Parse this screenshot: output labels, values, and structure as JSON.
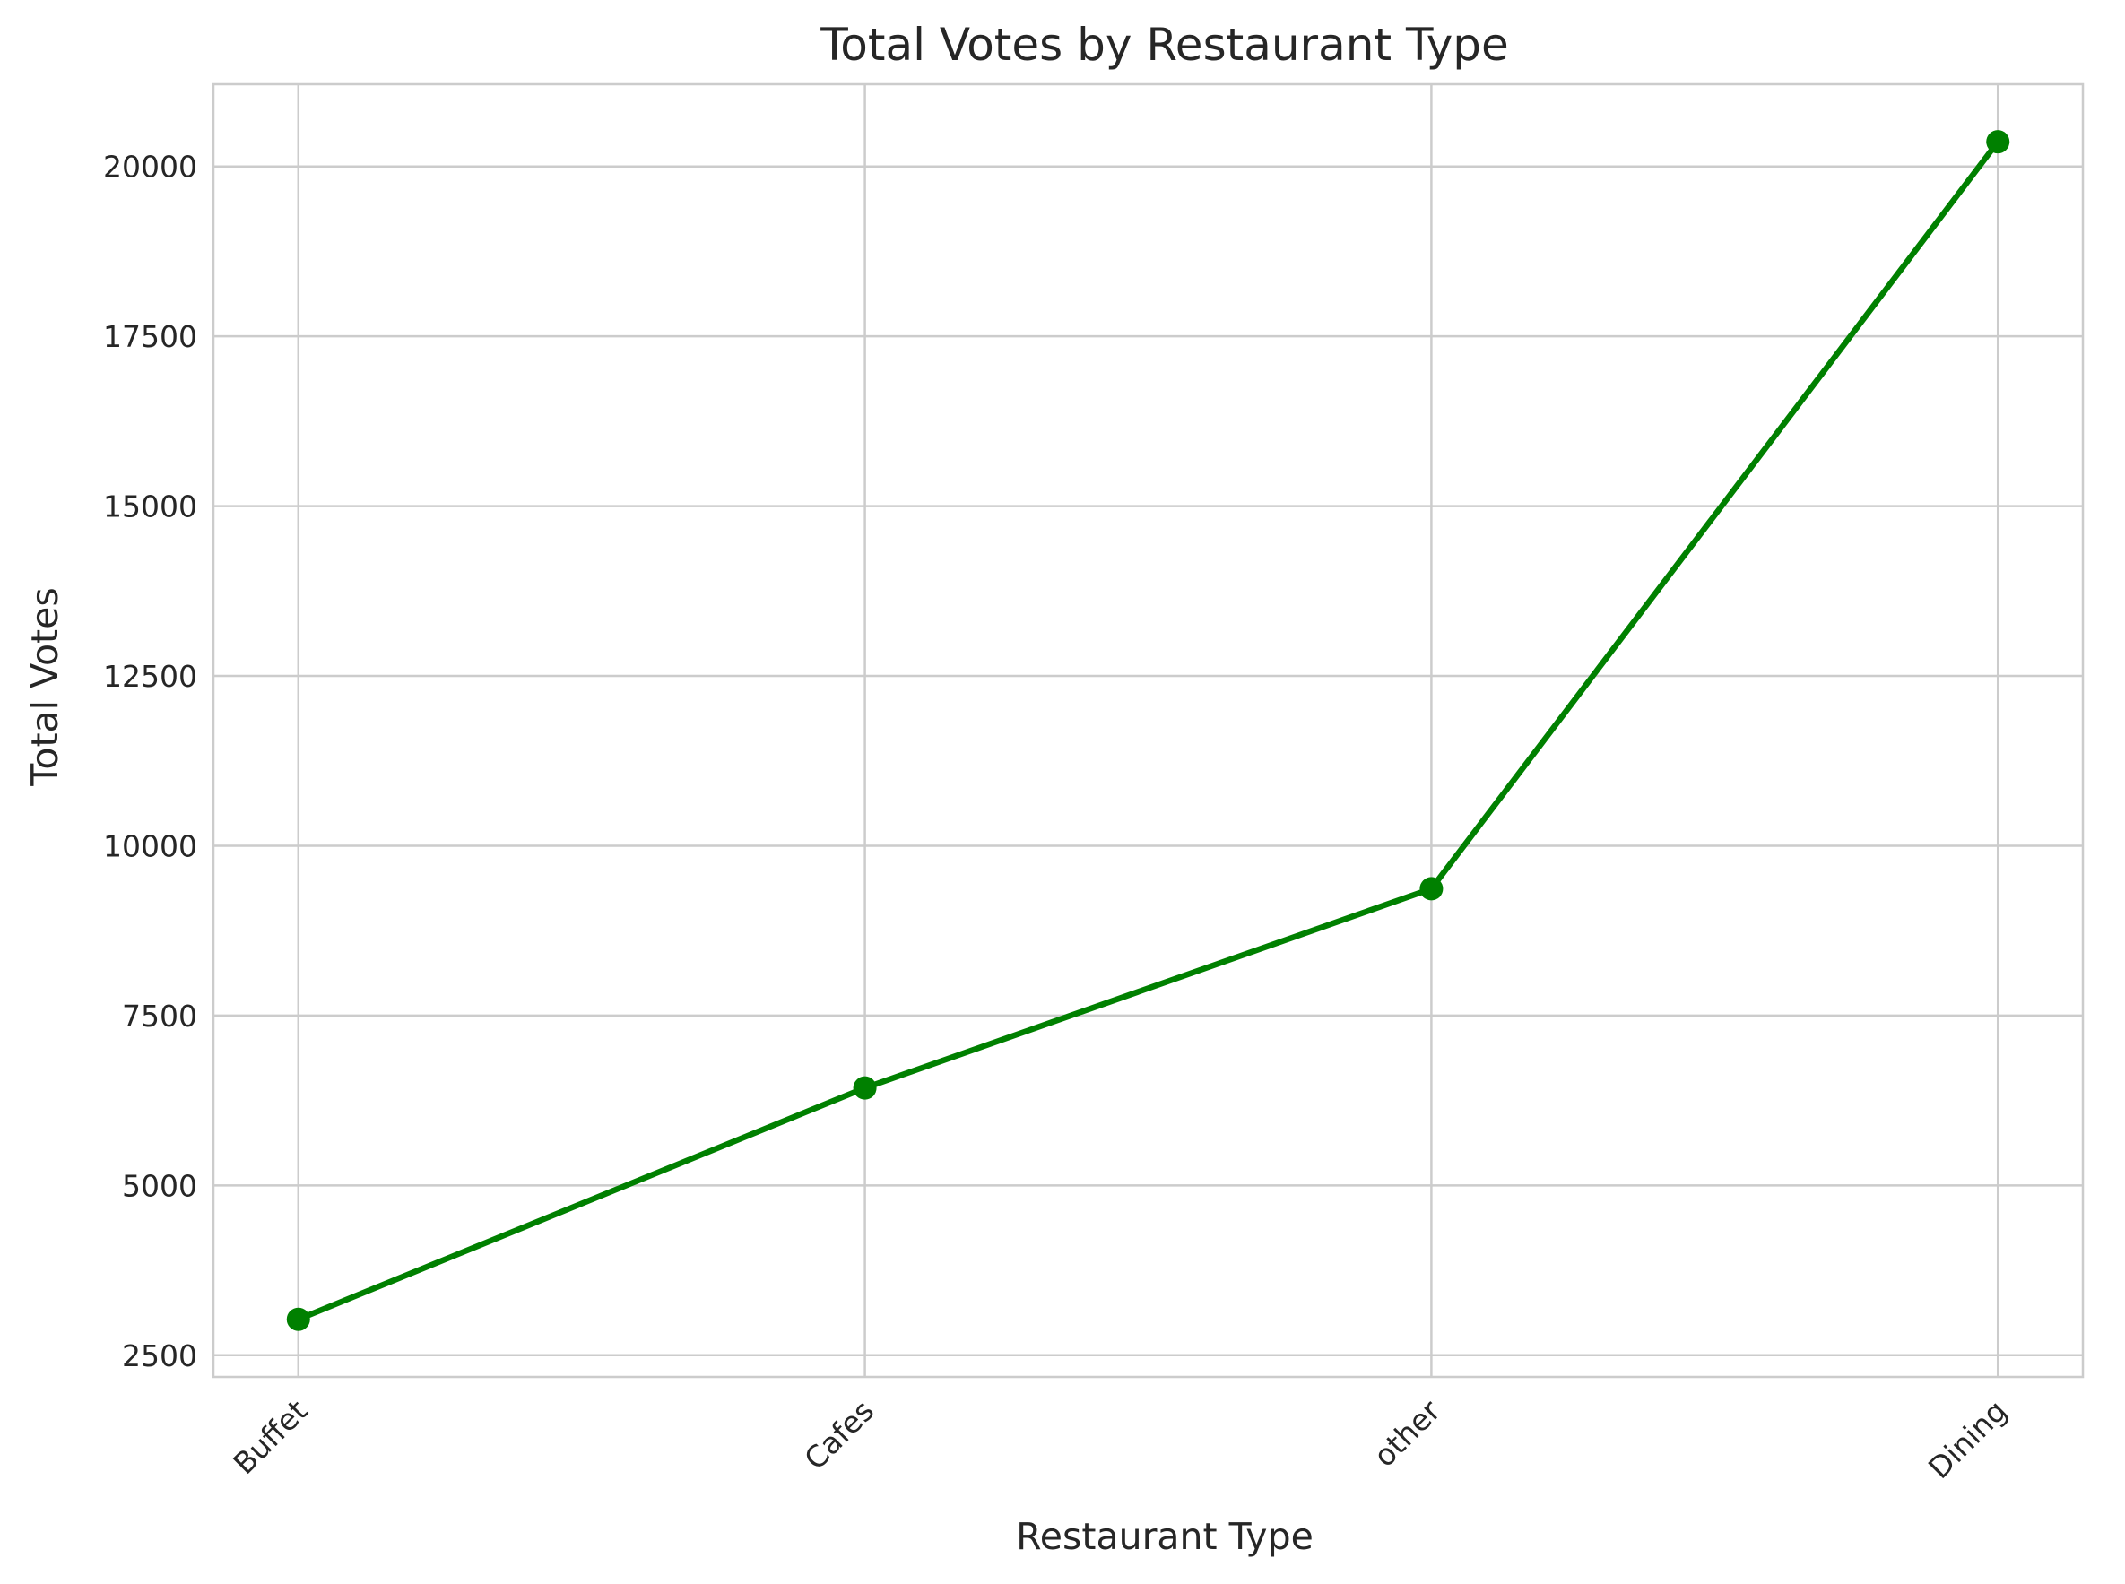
{
  "chart_data": {
    "type": "line",
    "title": "Total Votes by Restaurant Type",
    "xlabel": "Restaurant Type",
    "ylabel": "Total Votes",
    "categories": [
      "Buffet",
      "Cafes",
      "other",
      "Dining"
    ],
    "series": [
      {
        "values": [
          3028,
          6434,
          9367,
          20363
        ],
        "color": "#008000",
        "marker": "circle"
      }
    ],
    "ylim": [
      2180,
      21210
    ],
    "yticks": [
      2500,
      5000,
      7500,
      10000,
      12500,
      15000,
      17500,
      20000
    ],
    "ytick_labels": [
      "2500",
      "5000",
      "7500",
      "10000",
      "12500",
      "15000",
      "17500",
      "20000"
    ],
    "grid": true,
    "xtick_rotation": -45
  }
}
